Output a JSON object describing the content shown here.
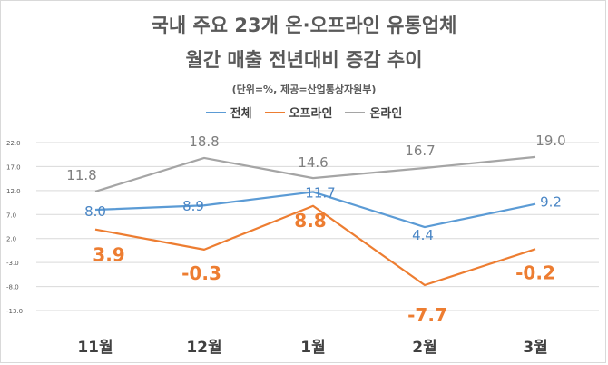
{
  "chart_data": {
    "type": "line",
    "title": "국내 주요 23개 온·오프라인 유통업체",
    "subtitle": "월간 매출 전년대비 증감 추이",
    "note": "(단위=%, 제공=산업통상자원부)",
    "categories": [
      "11월",
      "12월",
      "1월",
      "2월",
      "3월"
    ],
    "ylim": [
      -13.0,
      22.0
    ],
    "yticks": [
      "22.0",
      "17.0",
      "12.0",
      "7.0",
      "2.0",
      "-3.0",
      "-8.0",
      "-13.0"
    ],
    "grid": true,
    "legend_position": "top",
    "series": [
      {
        "name": "전체",
        "color": "#5b9bd5",
        "values": [
          8.0,
          8.9,
          11.7,
          4.4,
          9.2
        ],
        "labels": [
          "8.0",
          "8.9",
          "11.7",
          "4.4",
          "9.2"
        ]
      },
      {
        "name": "오프라인",
        "color": "#ed7d31",
        "values": [
          3.9,
          -0.3,
          8.8,
          -7.7,
          -0.2
        ],
        "labels": [
          "3.9",
          "-0.3",
          "8.8",
          "-7.7",
          "-0.2"
        ]
      },
      {
        "name": "온라인",
        "color": "#a5a5a5",
        "values": [
          11.8,
          18.8,
          14.6,
          16.7,
          19.0
        ],
        "labels": [
          "11.8",
          "18.8",
          "14.6",
          "16.7",
          "19.0"
        ]
      }
    ]
  }
}
